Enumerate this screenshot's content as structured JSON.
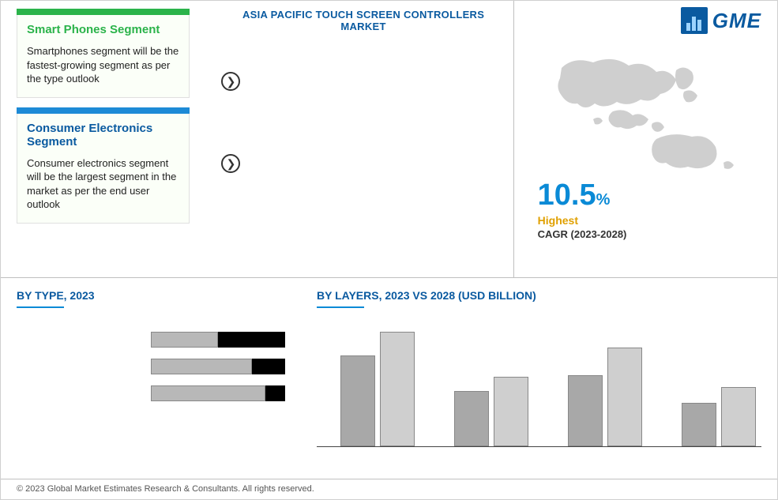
{
  "header": {
    "main_title": "ASIA PACIFIC TOUCH SCREEN CONTROLLERS MARKET",
    "logo_text": "GME"
  },
  "segments": [
    {
      "bar_color": "#2bb34a",
      "title_color": "#2bb34a",
      "title": "Smart Phones Segment",
      "body": "Smartphones segment will be the fastest-growing segment as per the type outlook"
    },
    {
      "bar_color": "#1d8ad6",
      "title_color": "#0a5aa0",
      "title": "Consumer Electronics Segment",
      "body": "Consumer electronics segment will be the largest segment in the market as per the end user outlook"
    }
  ],
  "cagr": {
    "value": "10.5",
    "pct": "%",
    "label": "Highest",
    "sub": "CAGR (2023-2028)"
  },
  "type_chart": {
    "title": "BY TYPE, 2023",
    "bars": [
      {
        "fill_pct": 50,
        "total_width": 170
      },
      {
        "fill_pct": 75,
        "total_width": 170
      },
      {
        "fill_pct": 85,
        "total_width": 170
      }
    ],
    "fill_color": "#b8b8b8",
    "rem_color": "#000000"
  },
  "layers_chart": {
    "title": "BY LAYERS, 2023 VS 2028 (USD BILLION)",
    "groups": [
      {
        "a": 115,
        "b": 145
      },
      {
        "a": 70,
        "b": 88
      },
      {
        "a": 90,
        "b": 125
      },
      {
        "a": 55,
        "b": 75
      }
    ],
    "color_a": "#a8a8a8",
    "color_b": "#cfcfcf",
    "max_height": 160
  },
  "footer": {
    "text": "© 2023 Global Market Estimates Research & Consultants. All rights reserved."
  },
  "map_color": "#cfcfcf"
}
